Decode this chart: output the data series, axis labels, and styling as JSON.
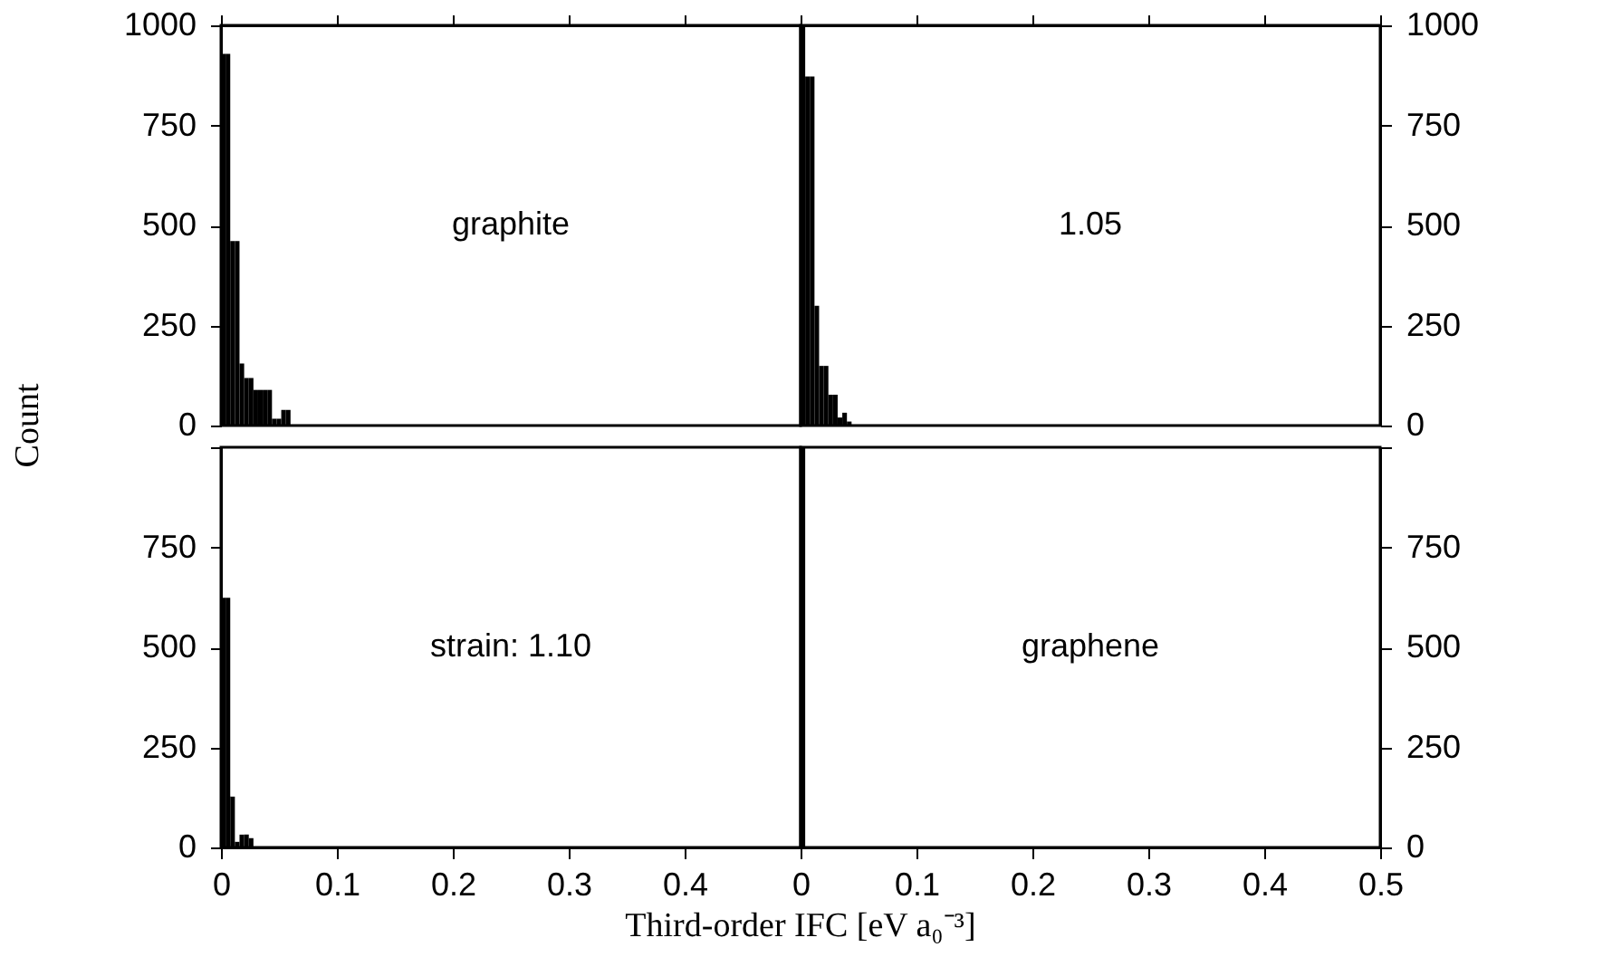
{
  "chart_data": [
    {
      "type": "histogram",
      "ylabel": "Count",
      "annotations": [
        "graphite"
      ],
      "bins": [
        0,
        0.004,
        0.008,
        0.012,
        0.016,
        0.02,
        0.024,
        0.028,
        0.032,
        0.036,
        0.04,
        0.044,
        0.048,
        0.052,
        0.056,
        0.06
      ],
      "values": [
        929,
        929,
        461,
        461,
        155,
        119,
        119,
        89,
        89,
        89,
        89,
        17,
        17,
        39,
        39
      ],
      "color": "#000000",
      "xlim": [
        0,
        0.5
      ],
      "ylim": [
        0,
        1000
      ],
      "xticks": [
        {
          "value": 0,
          "label": null
        },
        {
          "value": 0.1,
          "label": null
        },
        {
          "value": 0.2,
          "label": null
        },
        {
          "value": 0.3,
          "label": null
        },
        {
          "value": 0.4,
          "label": null
        },
        {
          "value": 0.5,
          "label": null
        }
      ],
      "yticks": [
        0,
        250,
        500,
        750,
        1000
      ],
      "tick_labels": "y",
      "grid": false
    },
    {
      "type": "histogram",
      "annotations": [
        "1.05"
      ],
      "bins": [
        0,
        0.004,
        0.008,
        0.012,
        0.016,
        0.02,
        0.024,
        0.028,
        0.032,
        0.036,
        0.04,
        0.044
      ],
      "values": [
        1000,
        872,
        872,
        299,
        149,
        149,
        77,
        77,
        20,
        32,
        10
      ],
      "color": "#000000",
      "xlim": [
        0,
        0.5
      ],
      "ylim": [
        0,
        1000
      ],
      "xticks": [
        {
          "value": 0,
          "label": null
        },
        {
          "value": 0.1,
          "label": null
        },
        {
          "value": 0.2,
          "label": null
        },
        {
          "value": 0.3,
          "label": null
        },
        {
          "value": 0.4,
          "label": null
        },
        {
          "value": 0.5,
          "label": null
        }
      ],
      "yticks": [
        0,
        250,
        500,
        750,
        1000
      ],
      "tick_labels": "y",
      "grid": false
    },
    {
      "type": "histogram",
      "xlabel": "Third-order IFC [eV a₀⁻³]",
      "annotations": [
        "strain: 1.10"
      ],
      "bins": [
        0,
        0.004,
        0.008,
        0.012,
        0.016,
        0.02,
        0.024,
        0.028
      ],
      "values": [
        624,
        624,
        127,
        14,
        32,
        32,
        23
      ],
      "color": "#000000",
      "xlim": [
        0,
        0.5
      ],
      "ylim": [
        0,
        1000
      ],
      "xticks": [
        0,
        0.1,
        0.2,
        0.3,
        0.4,
        {
          "value": 0.5,
          "label": null
        }
      ],
      "yticks": [
        0,
        250,
        500,
        750,
        {
          "value": 1000,
          "label": null
        }
      ],
      "grid": false
    },
    {
      "type": "histogram",
      "annotations": [
        "graphene"
      ],
      "bins": [
        0,
        0.004
      ],
      "values": [
        1000
      ],
      "color": "#000000",
      "xlim": [
        0,
        0.5
      ],
      "ylim": [
        0,
        1000
      ],
      "xticks": [
        0,
        0.1,
        0.2,
        0.3,
        0.4,
        0.5
      ],
      "yticks": [
        0,
        250,
        500,
        750,
        {
          "value": 1000,
          "label": null
        }
      ],
      "grid": false
    }
  ]
}
